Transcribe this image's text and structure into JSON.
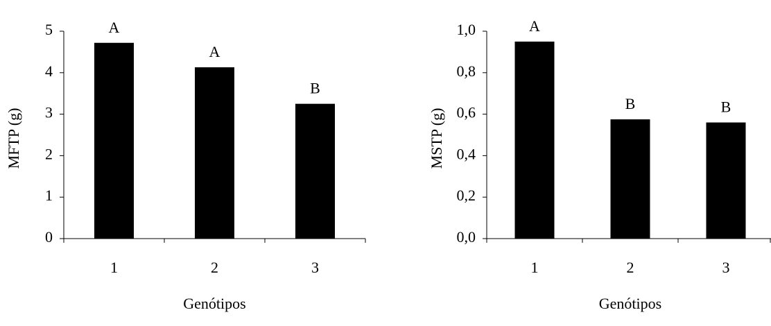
{
  "chart_data": [
    {
      "type": "bar",
      "y_label": "MFTP (g)",
      "x_label": "Genótipos",
      "categories": [
        "1",
        "2",
        "3"
      ],
      "values": [
        4.72,
        4.13,
        3.25
      ],
      "annotations": [
        "A",
        "A",
        "B"
      ],
      "color": "#000000",
      "ylim": [
        0,
        5
      ],
      "yticks": [
        0,
        1,
        2,
        3,
        4,
        5
      ]
    },
    {
      "type": "bar",
      "y_label": "MSTP (g)",
      "x_label": "Genótipos",
      "categories": [
        "1",
        "2",
        "3"
      ],
      "values": [
        0.95,
        0.575,
        0.56
      ],
      "annotations": [
        "A",
        "B",
        "B"
      ],
      "color": "#000000",
      "ylim": [
        0,
        1
      ],
      "yticks": [
        {
          "value": 0,
          "label": "0,0"
        },
        {
          "value": 0.2,
          "label": "0,2"
        },
        {
          "value": 0.4,
          "label": "0,4"
        },
        {
          "value": 0.6,
          "label": "0,6"
        },
        {
          "value": 0.8,
          "label": "0,8"
        },
        {
          "value": 1,
          "label": "1,0"
        }
      ]
    }
  ]
}
